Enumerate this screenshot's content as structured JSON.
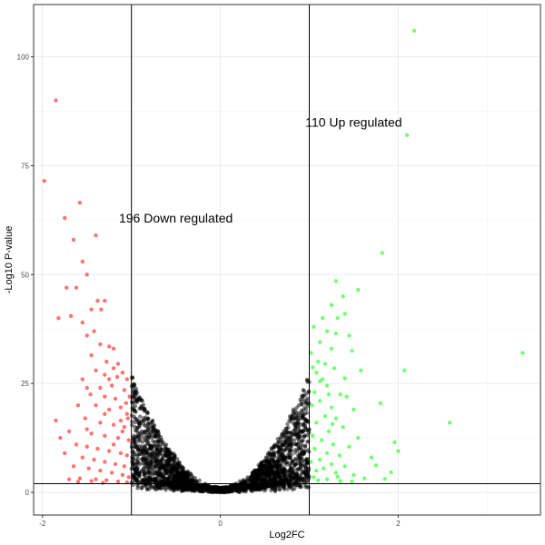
{
  "chart_data": {
    "type": "scatter",
    "title": "",
    "xlabel": "Log2FC",
    "ylabel": "-Log10 P-value",
    "xlim": [
      -2.1,
      3.6
    ],
    "ylim": [
      -5.2,
      112
    ],
    "x_ticks": [
      -2,
      0,
      2
    ],
    "y_ticks": [
      0,
      25,
      50,
      75,
      100
    ],
    "x_tick_labels": [
      "-2",
      "0",
      "2"
    ],
    "y_tick_labels": [
      "0",
      "25",
      "50",
      "75",
      "100"
    ],
    "grid": true,
    "legend": "none",
    "thresholds": {
      "log2fc": [
        -1,
        1
      ],
      "neg_log10_p": 2
    },
    "colors": {
      "down": "#ff0000",
      "up": "#00ff00",
      "ns": "#000000"
    },
    "annotations": [
      {
        "text": "196 Down regulated",
        "x": -0.5,
        "y": 63
      },
      {
        "text": "110 Up regulated",
        "x": 1.5,
        "y": 85
      }
    ],
    "down_points": [
      [
        -1.85,
        90
      ],
      [
        -1.98,
        71.5
      ],
      [
        -1.58,
        66.5
      ],
      [
        -1.75,
        63
      ],
      [
        -1.65,
        58
      ],
      [
        -1.4,
        59
      ],
      [
        -1.55,
        53
      ],
      [
        -1.73,
        47
      ],
      [
        -1.62,
        47
      ],
      [
        -1.5,
        50
      ],
      [
        -1.38,
        44
      ],
      [
        -1.3,
        44
      ],
      [
        -1.45,
        42
      ],
      [
        -1.34,
        42
      ],
      [
        -1.82,
        40
      ],
      [
        -1.68,
        40.5
      ],
      [
        -1.55,
        39
      ],
      [
        -1.42,
        37
      ],
      [
        -1.5,
        36
      ],
      [
        -1.35,
        34
      ],
      [
        -1.25,
        33.5
      ],
      [
        -1.2,
        33
      ],
      [
        -1.45,
        31.5
      ],
      [
        -1.28,
        30
      ],
      [
        -1.15,
        29.5
      ],
      [
        -1.4,
        28
      ],
      [
        -1.3,
        27
      ],
      [
        -1.2,
        28.5
      ],
      [
        -1.1,
        27.5
      ],
      [
        -1.55,
        26
      ],
      [
        -1.05,
        26
      ],
      [
        -1.5,
        24
      ],
      [
        -1.22,
        24.5
      ],
      [
        -1.08,
        23.5
      ],
      [
        -1.3,
        22
      ],
      [
        -1.18,
        21.5
      ],
      [
        -1.02,
        22
      ],
      [
        -1.6,
        20
      ],
      [
        -1.4,
        20
      ],
      [
        -1.25,
        19
      ],
      [
        -1.12,
        19.5
      ],
      [
        -1.05,
        18
      ],
      [
        -1.85,
        16.5
      ],
      [
        -1.52,
        17
      ],
      [
        -1.35,
        16
      ],
      [
        -1.2,
        15.5
      ],
      [
        -1.08,
        15
      ],
      [
        -1.7,
        14
      ],
      [
        -1.45,
        13.5
      ],
      [
        -1.3,
        13
      ],
      [
        -1.15,
        12.5
      ],
      [
        -1.03,
        12
      ],
      [
        -1.8,
        12.5
      ],
      [
        -1.62,
        11
      ],
      [
        -1.5,
        10.5
      ],
      [
        -1.38,
        10
      ],
      [
        -1.25,
        9.5
      ],
      [
        -1.12,
        9
      ],
      [
        -1.05,
        8.5
      ],
      [
        -1.55,
        8
      ],
      [
        -1.42,
        7.5
      ],
      [
        -1.3,
        7
      ],
      [
        -1.18,
        6.5
      ],
      [
        -1.08,
        6
      ],
      [
        -1.65,
        6
      ],
      [
        -1.48,
        5.5
      ],
      [
        -1.35,
        5
      ],
      [
        -1.22,
        4.5
      ],
      [
        -1.1,
        4
      ],
      [
        -1.03,
        3.5
      ],
      [
        -1.7,
        3
      ],
      [
        -1.58,
        3.2
      ],
      [
        -1.4,
        3
      ],
      [
        -1.28,
        2.8
      ],
      [
        -1.15,
        2.5
      ],
      [
        -1.05,
        2.3
      ],
      [
        -1.32,
        2.2
      ],
      [
        -1.45,
        2.6
      ],
      [
        -1.6,
        2.4
      ],
      [
        -1.2,
        11
      ],
      [
        -1.1,
        14
      ],
      [
        -1.04,
        17
      ],
      [
        -1.25,
        26
      ],
      [
        -1.35,
        24
      ],
      [
        -1.46,
        22.5
      ],
      [
        -1.16,
        26.5
      ],
      [
        -1.06,
        20.5
      ],
      [
        -1.12,
        16.5
      ],
      [
        -1.3,
        18
      ],
      [
        -1.5,
        14.5
      ],
      [
        -1.75,
        9
      ]
    ],
    "up_points": [
      [
        2.18,
        106
      ],
      [
        2.1,
        82
      ],
      [
        1.82,
        55
      ],
      [
        1.55,
        46.5
      ],
      [
        1.3,
        48.5
      ],
      [
        1.38,
        45
      ],
      [
        1.25,
        43
      ],
      [
        1.4,
        41
      ],
      [
        1.32,
        40
      ],
      [
        1.15,
        40
      ],
      [
        1.05,
        38
      ],
      [
        1.2,
        37
      ],
      [
        1.3,
        36.5
      ],
      [
        1.45,
        36
      ],
      [
        1.12,
        34.5
      ],
      [
        1.25,
        33
      ],
      [
        1.48,
        32.5
      ],
      [
        1.02,
        32
      ],
      [
        1.1,
        30
      ],
      [
        1.18,
        29.5
      ],
      [
        1.28,
        28.5
      ],
      [
        1.58,
        28
      ],
      [
        3.4,
        32
      ],
      [
        2.07,
        28
      ],
      [
        1.08,
        27.5
      ],
      [
        1.15,
        26
      ],
      [
        1.2,
        24.5
      ],
      [
        1.06,
        23
      ],
      [
        1.35,
        22.5
      ],
      [
        1.42,
        22
      ],
      [
        1.12,
        21
      ],
      [
        1.25,
        19.5
      ],
      [
        1.03,
        20
      ],
      [
        1.8,
        20.5
      ],
      [
        1.5,
        19
      ],
      [
        1.18,
        17.5
      ],
      [
        1.3,
        17
      ],
      [
        1.08,
        16
      ],
      [
        1.38,
        15
      ],
      [
        1.22,
        14
      ],
      [
        1.04,
        13
      ],
      [
        1.55,
        12.5
      ],
      [
        1.14,
        12
      ],
      [
        1.27,
        11
      ],
      [
        1.45,
        10.5
      ],
      [
        1.06,
        10
      ],
      [
        1.2,
        9
      ],
      [
        1.34,
        8.5
      ],
      [
        1.7,
        8
      ],
      [
        1.12,
        7.5
      ],
      [
        1.02,
        7
      ],
      [
        1.25,
        6.5
      ],
      [
        1.4,
        6
      ],
      [
        1.16,
        5.5
      ],
      [
        1.08,
        5
      ],
      [
        1.3,
        4.5
      ],
      [
        1.5,
        4
      ],
      [
        1.05,
        3.5
      ],
      [
        1.2,
        3
      ],
      [
        1.1,
        2.8
      ],
      [
        1.35,
        2.6
      ],
      [
        1.62,
        3.2
      ],
      [
        1.85,
        3.1
      ],
      [
        2.0,
        9.5
      ],
      [
        2.58,
        16
      ],
      [
        1.96,
        11.5
      ],
      [
        1.75,
        6.2
      ],
      [
        1.92,
        4.6
      ],
      [
        1.48,
        2.5
      ],
      [
        1.32,
        3.6
      ],
      [
        1.22,
        22.5
      ],
      [
        1.12,
        25.5
      ],
      [
        1.04,
        28.7
      ],
      [
        1.4,
        26.2
      ],
      [
        1.26,
        15.7
      ]
    ]
  }
}
